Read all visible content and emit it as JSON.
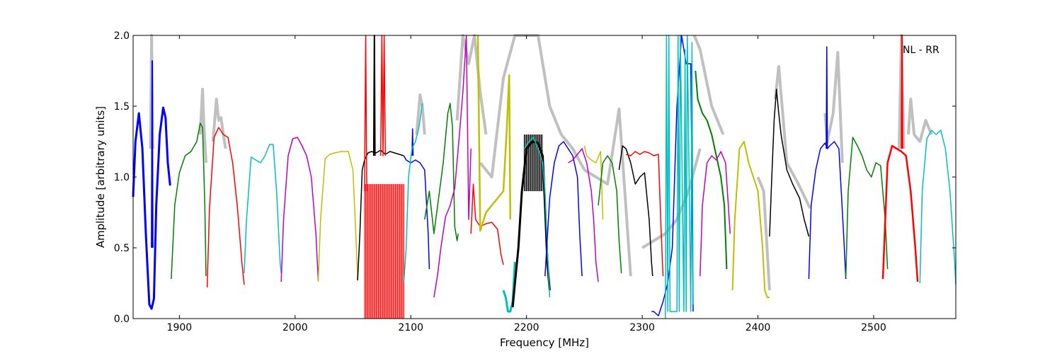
{
  "chart_data": {
    "type": "line",
    "xlabel": "Frequency [MHz]",
    "ylabel": "Amplitude [arbitrary units]",
    "annotation": "NL - RR",
    "xlim": [
      1860,
      2571
    ],
    "ylim": [
      0.0,
      2.0
    ],
    "x_ticks": [
      1900,
      2000,
      2100,
      2200,
      2300,
      2400,
      2500
    ],
    "y_ticks": [
      "0.0",
      "0.5",
      "1.0",
      "1.5",
      "2.0"
    ],
    "grid": false,
    "legend": "none",
    "reference_color": "#c0c0c0",
    "reference_segments": [
      {
        "x": [
          1918,
          1920,
          1921,
          1923
        ],
        "y": [
          1.3,
          1.62,
          1.4,
          1.1
        ]
      },
      {
        "x": [
          1929,
          1932,
          1934,
          1936,
          1938,
          1940
        ],
        "y": [
          1.25,
          1.55,
          1.4,
          1.42,
          1.3,
          1.2
        ]
      },
      {
        "x": [
          1875,
          1876,
          1877
        ],
        "y": [
          1.2,
          2.0,
          1.2
        ]
      },
      {
        "x": [
          2105,
          2108,
          2110,
          2112
        ],
        "y": [
          1.3,
          1.58,
          1.5,
          1.3
        ]
      },
      {
        "x": [
          2140,
          2145,
          2150,
          2155,
          2160,
          2165
        ],
        "y": [
          1.4,
          2.0,
          1.8,
          2.0,
          1.6,
          1.3
        ]
      },
      {
        "x": [
          2160,
          2170,
          2180,
          2190,
          2200,
          2210,
          2220,
          2230,
          2240,
          2250
        ],
        "y": [
          1.1,
          1.0,
          1.7,
          2.0,
          2.0,
          2.0,
          1.5,
          1.3,
          1.2,
          1.05
        ]
      },
      {
        "x": [
          2250,
          2260,
          2270,
          2280,
          2290
        ],
        "y": [
          1.05,
          1.0,
          0.95,
          1.48,
          0.3
        ]
      },
      {
        "x": [
          2300,
          2310,
          2320,
          2330,
          2340,
          2350
        ],
        "y": [
          0.5,
          0.55,
          0.6,
          0.7,
          0.9,
          1.2
        ]
      },
      {
        "x": [
          2345,
          2350,
          2360,
          2370
        ],
        "y": [
          2.0,
          1.9,
          1.5,
          1.3
        ]
      },
      {
        "x": [
          2400,
          2405,
          2410
        ],
        "y": [
          1.0,
          0.9,
          0.2
        ]
      },
      {
        "x": [
          2415,
          2418,
          2425,
          2435,
          2445
        ],
        "y": [
          1.55,
          1.78,
          1.1,
          0.95,
          0.78
        ]
      },
      {
        "x": [
          2458,
          2460,
          2465,
          2469,
          2473
        ],
        "y": [
          1.45,
          1.25,
          1.45,
          1.88,
          1.1
        ]
      },
      {
        "x": [
          2522,
          2524,
          2526
        ],
        "y": [
          1.2,
          2.0,
          1.2
        ]
      },
      {
        "x": [
          2530,
          2532,
          2535,
          2540,
          2545,
          2550
        ],
        "y": [
          1.3,
          1.55,
          1.3,
          1.25,
          1.4,
          1.3
        ]
      }
    ],
    "series": [
      {
        "color": "#0000ff",
        "lw": 3,
        "x": [
          1860,
          1862,
          1865,
          1868,
          1871,
          1874,
          1876,
          1878,
          1880,
          1883,
          1886,
          1888,
          1890,
          1892
        ],
        "y": [
          0.86,
          1.25,
          1.45,
          1.2,
          0.6,
          0.1,
          0.07,
          0.14,
          0.8,
          1.3,
          1.49,
          1.42,
          1.1,
          0.94
        ]
      },
      {
        "color": "#0000ff",
        "lw": 2,
        "x": [
          1876,
          1876.5,
          1877
        ],
        "y": [
          0.5,
          1.82,
          0.5
        ]
      },
      {
        "color": "#007f00",
        "lw": 1.5,
        "x": [
          1893,
          1896,
          1900,
          1905,
          1910,
          1915,
          1918,
          1920,
          1922,
          1923
        ],
        "y": [
          0.28,
          0.8,
          1.03,
          1.15,
          1.18,
          1.25,
          1.38,
          1.35,
          0.8,
          0.3
        ]
      },
      {
        "color": "#ff0000",
        "lw": 1.5,
        "x": [
          1924,
          1926,
          1930,
          1934,
          1938,
          1942,
          1946,
          1950,
          1954,
          1956
        ],
        "y": [
          0.22,
          0.78,
          1.28,
          1.35,
          1.3,
          1.28,
          1.1,
          0.8,
          0.4,
          0.24
        ]
      },
      {
        "color": "#00bfbf",
        "lw": 1.5,
        "x": [
          1956,
          1958,
          1962,
          1966,
          1970,
          1974,
          1978,
          1981,
          1984,
          1987,
          1988
        ],
        "y": [
          0.32,
          0.7,
          1.14,
          1.12,
          1.1,
          1.15,
          1.23,
          1.23,
          0.9,
          0.4,
          0.32
        ]
      },
      {
        "color": "#bf00bf",
        "lw": 1.5,
        "x": [
          1988,
          1990,
          1994,
          1998,
          2002,
          2006,
          2010,
          2014,
          2018,
          2020
        ],
        "y": [
          0.26,
          0.7,
          1.15,
          1.27,
          1.28,
          1.22,
          1.15,
          1.0,
          0.6,
          0.27
        ]
      },
      {
        "color": "#bfbf00",
        "lw": 1.5,
        "x": [
          2020,
          2022,
          2026,
          2030,
          2034,
          2040,
          2046,
          2050,
          2053,
          2054
        ],
        "y": [
          0.26,
          0.7,
          1.13,
          1.16,
          1.17,
          1.18,
          1.18,
          1.05,
          0.5,
          0.27
        ]
      },
      {
        "color": "#000000",
        "lw": 1.5,
        "x": [
          2054,
          2056,
          2058,
          2060,
          2063,
          2066,
          2070,
          2074,
          2078,
          2082,
          2086,
          2090,
          2094
        ],
        "y": [
          0.27,
          0.6,
          1.05,
          1.12,
          1.17,
          1.18,
          1.17,
          1.19,
          1.16,
          1.18,
          1.17,
          1.16,
          1.15
        ]
      },
      {
        "color": "#000000",
        "lw": 2,
        "x": [
          2068,
          2068.5,
          2069
        ],
        "y": [
          1.15,
          2.0,
          1.15
        ]
      },
      {
        "color": "#ff0000",
        "lw": 1.5,
        "x": [
          2074,
          2075,
          2076,
          2077,
          2078
        ],
        "y": [
          1.15,
          2.0,
          1.15,
          2.0,
          1.15
        ]
      },
      {
        "color": "#ff0000",
        "lw": 1.5,
        "x": [
          2060,
          2061,
          2062
        ],
        "y": [
          0.9,
          2.0,
          0.9
        ]
      },
      {
        "color": "#0000ff",
        "lw": 1.5,
        "x": [
          2094,
          2096,
          2100,
          2104,
          2108,
          2112,
          2115,
          2116
        ],
        "y": [
          1.15,
          1.12,
          1.1,
          1.12,
          1.1,
          1.05,
          0.6,
          0.35
        ]
      },
      {
        "color": "#0000ff",
        "lw": 1.5,
        "x": [
          2101,
          2101.5,
          2102
        ],
        "y": [
          1.15,
          1.34,
          1.15
        ]
      },
      {
        "color": "#00bfbf",
        "lw": 1.5,
        "x": [
          2094,
          2096,
          2098,
          2101,
          2104,
          2107,
          2110
        ],
        "y": [
          0.26,
          0.5,
          1.0,
          1.2,
          1.25,
          1.35,
          1.52
        ]
      },
      {
        "color": "#007f00",
        "lw": 1.5,
        "x": [
          2112,
          2116,
          2120,
          2124,
          2128,
          2132,
          2134,
          2136,
          2138,
          2140,
          2141
        ],
        "y": [
          0.7,
          0.9,
          0.6,
          0.85,
          1.1,
          1.45,
          1.52,
          1.35,
          0.65,
          0.55,
          0.6
        ]
      },
      {
        "color": "#bf00bf",
        "lw": 1.5,
        "x": [
          2120,
          2123,
          2126,
          2130,
          2134,
          2138,
          2142,
          2145,
          2148,
          2150,
          2152
        ],
        "y": [
          0.15,
          0.3,
          0.5,
          0.72,
          0.8,
          0.92,
          1.3,
          1.6,
          2.0,
          0.7,
          1.2
        ]
      },
      {
        "color": "#ff0000",
        "lw": 1.5,
        "x": [
          2152,
          2154,
          2156,
          2160,
          2165,
          2170,
          2175,
          2178,
          2180
        ],
        "y": [
          0.6,
          0.95,
          0.7,
          0.65,
          0.67,
          0.68,
          0.63,
          0.45,
          0.38
        ]
      },
      {
        "color": "#bfbf00",
        "lw": 2.5,
        "x": [
          2158,
          2160,
          2165,
          2170,
          2175,
          2180,
          2183,
          2185,
          2186
        ],
        "y": [
          2.0,
          0.62,
          0.75,
          0.8,
          0.85,
          0.9,
          1.35,
          1.72,
          0.7
        ]
      },
      {
        "color": "#00bfbf",
        "lw": 3,
        "x": [
          2180,
          2182,
          2184,
          2186,
          2188,
          2190
        ],
        "y": [
          0.2,
          0.15,
          0.05,
          0.05,
          0.12,
          0.4
        ]
      },
      {
        "color": "#000000",
        "lw": 3,
        "x": [
          2188,
          2190,
          2193,
          2196,
          2200,
          2205,
          2210,
          2214,
          2216,
          2218,
          2220
        ],
        "y": [
          0.08,
          0.25,
          0.5,
          0.9,
          1.2,
          1.25,
          1.24,
          1.15,
          0.8,
          0.4,
          0.2
        ]
      },
      {
        "color": "#00bfbf",
        "lw": 1.5,
        "x": [
          2198,
          2202,
          2206,
          2210,
          2214,
          2216,
          2218,
          2220
        ],
        "y": [
          1.2,
          1.25,
          1.28,
          1.2,
          1.1,
          0.9,
          0.5,
          0.15
        ]
      },
      {
        "color": "#0000ff",
        "lw": 1.5,
        "x": [
          2216,
          2220,
          2224,
          2228,
          2232,
          2236,
          2240,
          2244,
          2246,
          2248
        ],
        "y": [
          0.3,
          0.85,
          1.1,
          1.22,
          1.25,
          1.2,
          1.15,
          1.0,
          0.6,
          0.3
        ]
      },
      {
        "color": "#bf00bf",
        "lw": 1.5,
        "x": [
          2236,
          2240,
          2244,
          2248,
          2252,
          2256,
          2258,
          2260,
          2262
        ],
        "y": [
          1.1,
          1.12,
          1.16,
          1.2,
          1.1,
          0.9,
          0.7,
          0.4,
          0.26
        ]
      },
      {
        "color": "#bfbf00",
        "lw": 1.5,
        "x": [
          2250,
          2252,
          2256,
          2260,
          2264,
          2266
        ],
        "y": [
          1.22,
          1.15,
          1.12,
          1.1,
          1.18,
          0.7
        ]
      },
      {
        "color": "#007f00",
        "lw": 1.5,
        "x": [
          2262,
          2266,
          2270,
          2274,
          2278,
          2280,
          2282
        ],
        "y": [
          0.8,
          1.1,
          1.15,
          1.1,
          0.9,
          0.55,
          0.32
        ]
      },
      {
        "color": "#000000",
        "lw": 1.5,
        "x": [
          2280,
          2283,
          2286,
          2290,
          2294,
          2298,
          2302,
          2306,
          2308,
          2309
        ],
        "y": [
          1.05,
          1.22,
          1.2,
          1.1,
          0.95,
          1.0,
          1.03,
          0.7,
          0.4,
          0.3
        ]
      },
      {
        "color": "#ff0000",
        "lw": 1.5,
        "x": [
          2286,
          2290,
          2294,
          2298,
          2302,
          2306,
          2310,
          2314,
          2316,
          2318
        ],
        "y": [
          1.16,
          1.15,
          1.18,
          1.16,
          1.18,
          1.17,
          1.15,
          1.16,
          0.7,
          0.3
        ]
      },
      {
        "color": "#0000ff",
        "lw": 1.5,
        "x": [
          2308,
          2310,
          2314,
          2318,
          2322,
          2326,
          2330,
          2334,
          2338,
          2342,
          2344
        ],
        "y": [
          0.05,
          0.05,
          0.02,
          0.12,
          0.25,
          0.5,
          1.5,
          2.0,
          1.8,
          1.8,
          0.05
        ]
      },
      {
        "color": "#00bfbf",
        "lw": 1.5,
        "x": [
          2320,
          2321,
          2322,
          2323,
          2324,
          2330,
          2331,
          2332,
          2333,
          2336,
          2337,
          2338,
          2339,
          2342,
          2343,
          2344
        ],
        "y": [
          0.0,
          2.0,
          0.05,
          2.0,
          0.05,
          0.05,
          2.0,
          0.05,
          2.0,
          0.05,
          1.9,
          0.05,
          2.0,
          0.05,
          1.95,
          0.1
        ]
      },
      {
        "color": "#007f00",
        "lw": 2,
        "x": [
          2346,
          2348,
          2352,
          2356,
          2360,
          2364,
          2368,
          2371,
          2373
        ],
        "y": [
          1.75,
          1.55,
          1.45,
          1.4,
          1.3,
          1.15,
          1.0,
          0.8,
          0.35
        ]
      },
      {
        "color": "#bf00bf",
        "lw": 1.5,
        "x": [
          2350,
          2352,
          2356,
          2360,
          2364,
          2368,
          2372,
          2376
        ],
        "y": [
          0.3,
          0.8,
          1.1,
          1.15,
          1.12,
          1.18,
          1.1,
          0.6
        ]
      },
      {
        "color": "#bfbf00",
        "lw": 2,
        "x": [
          2378,
          2380,
          2384,
          2388,
          2392,
          2396,
          2400,
          2404,
          2406,
          2408,
          2410
        ],
        "y": [
          0.2,
          0.7,
          1.2,
          1.25,
          1.1,
          1.0,
          0.9,
          0.5,
          0.2,
          0.15,
          0.15
        ]
      },
      {
        "color": "#000000",
        "lw": 1.5,
        "x": [
          2410,
          2412,
          2414,
          2416,
          2418,
          2420,
          2425,
          2430,
          2436,
          2440,
          2444
        ],
        "y": [
          0.58,
          1.0,
          1.4,
          1.62,
          1.45,
          1.3,
          1.05,
          0.95,
          0.85,
          0.7,
          0.58
        ]
      },
      {
        "color": "#0000ff",
        "lw": 1.5,
        "x": [
          2444,
          2446,
          2450,
          2454,
          2458,
          2460,
          2462,
          2466,
          2470,
          2474,
          2476
        ],
        "y": [
          0.28,
          0.8,
          1.05,
          1.2,
          1.24,
          1.2,
          1.22,
          1.25,
          1.2,
          0.6,
          0.28
        ]
      },
      {
        "color": "#0000ff",
        "lw": 1.5,
        "x": [
          2459,
          2459.5,
          2460
        ],
        "y": [
          1.2,
          1.92,
          1.2
        ]
      },
      {
        "color": "#007f00",
        "lw": 1.5,
        "x": [
          2476,
          2478,
          2482,
          2486,
          2490,
          2494,
          2498,
          2502,
          2506,
          2510,
          2512
        ],
        "y": [
          0.3,
          0.9,
          1.28,
          1.22,
          1.15,
          1.05,
          1.0,
          1.1,
          1.08,
          0.7,
          0.35
        ]
      },
      {
        "color": "#ff0000",
        "lw": 2.5,
        "x": [
          2508,
          2512,
          2516,
          2520,
          2524,
          2528,
          2532,
          2536,
          2538
        ],
        "y": [
          0.28,
          1.1,
          1.22,
          1.2,
          1.18,
          1.15,
          0.9,
          0.5,
          0.26
        ]
      },
      {
        "color": "#ff0000",
        "lw": 2,
        "x": [
          2524,
          2524.5,
          2525
        ],
        "y": [
          1.2,
          2.0,
          1.2
        ]
      },
      {
        "color": "#00bfbf",
        "lw": 1.5,
        "x": [
          2540,
          2542,
          2546,
          2550,
          2554,
          2558,
          2562,
          2566,
          2570,
          2571
        ],
        "y": [
          0.25,
          0.9,
          1.27,
          1.33,
          1.3,
          1.33,
          1.2,
          0.9,
          0.4,
          0.24
        ]
      }
    ],
    "dense_fills": [
      {
        "color": "#ff0000",
        "x_start": 2060,
        "x_end": 2094,
        "y_low": 0.0,
        "y_high": 0.95
      },
      {
        "color": "#000000",
        "x_start": 2198,
        "x_end": 2214,
        "y_low": 0.9,
        "y_high": 1.3
      }
    ]
  }
}
